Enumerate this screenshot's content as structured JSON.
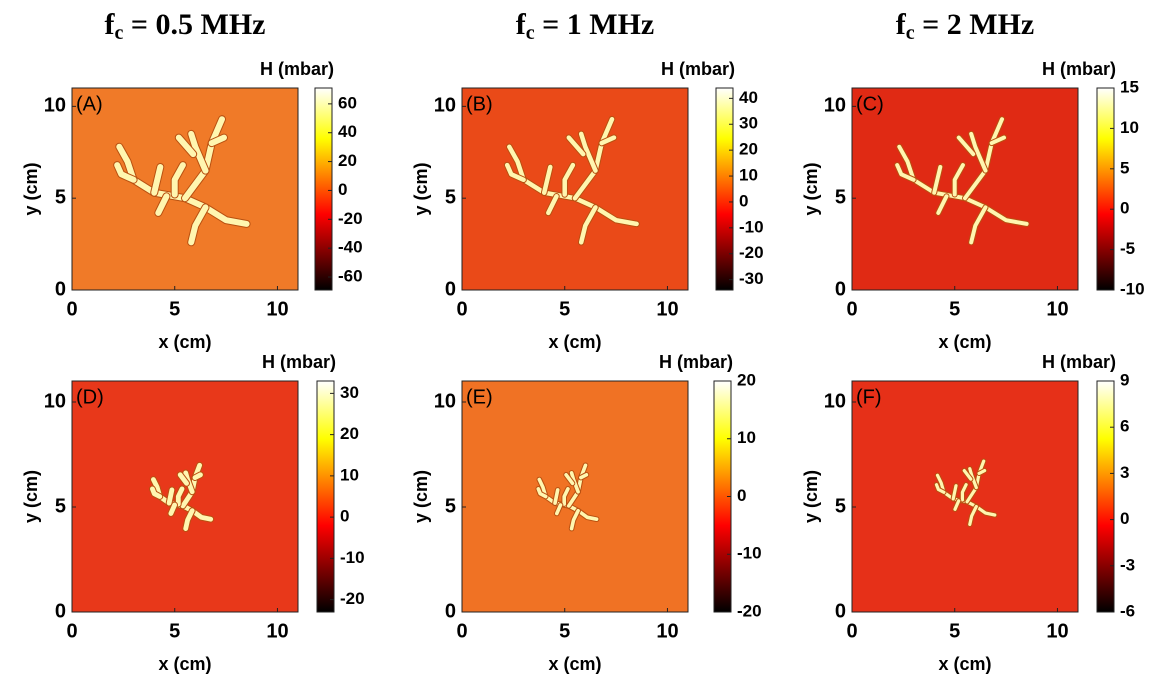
{
  "chart_data": [
    {
      "type": "heatmap",
      "title": [
        "f",
        "c",
        " = 0.5 MHz"
      ],
      "panel_label": "(A)",
      "x_label": "x (cm)",
      "y_label": "y (cm)",
      "xlim": [
        0,
        11
      ],
      "ylim": [
        0,
        11
      ],
      "xticks": [
        0,
        5,
        10
      ],
      "yticks": [
        0,
        5,
        10
      ],
      "field_color": "#f07a28",
      "colormap": "hot",
      "colorbar": {
        "label": "H (mbar)",
        "lim": [
          -69,
          71
        ],
        "ticks": [
          60,
          40,
          20,
          0,
          -20,
          -40,
          -60
        ]
      }
    },
    {
      "type": "heatmap",
      "title": [
        "f",
        "c",
        " = 1 MHz"
      ],
      "panel_label": "(B)",
      "x_label": "x (cm)",
      "y_label": "y (cm)",
      "xlim": [
        0,
        11
      ],
      "ylim": [
        0,
        11
      ],
      "xticks": [
        0,
        5,
        10
      ],
      "yticks": [
        0,
        5,
        10
      ],
      "field_color": "#ea4a18",
      "colormap": "hot",
      "colorbar": {
        "label": "H (mbar)",
        "lim": [
          -34,
          44
        ],
        "ticks": [
          40,
          30,
          20,
          10,
          0,
          -10,
          -20,
          -30
        ]
      }
    },
    {
      "type": "heatmap",
      "title": [
        "f",
        "c",
        " = 2 MHz"
      ],
      "panel_label": "(C)",
      "x_label": "x (cm)",
      "y_label": "y (cm)",
      "xlim": [
        0,
        11
      ],
      "ylim": [
        0,
        11
      ],
      "xticks": [
        0,
        5,
        10
      ],
      "yticks": [
        0,
        5,
        10
      ],
      "field_color": "#e02a14",
      "colormap": "hot",
      "colorbar": {
        "label": "H (mbar)",
        "lim": [
          -10,
          15
        ],
        "ticks": [
          15,
          10,
          5,
          0,
          -5,
          -10
        ]
      }
    },
    {
      "type": "heatmap",
      "panel_label": "(D)",
      "x_label": "x (cm)",
      "y_label": "y (cm)",
      "xlim": [
        0,
        11
      ],
      "ylim": [
        0,
        11
      ],
      "xticks": [
        0,
        5,
        10
      ],
      "yticks": [
        0,
        5,
        10
      ],
      "field_color": "#e8381a",
      "colormap": "hot",
      "colorbar": {
        "label": "H (mbar)",
        "lim": [
          -23,
          33
        ],
        "ticks": [
          30,
          20,
          10,
          0,
          -10,
          -20
        ]
      }
    },
    {
      "type": "heatmap",
      "panel_label": "(E)",
      "x_label": "x (cm)",
      "y_label": "y (cm)",
      "xlim": [
        0,
        11
      ],
      "ylim": [
        0,
        11
      ],
      "xticks": [
        0,
        5,
        10
      ],
      "yticks": [
        0,
        5,
        10
      ],
      "field_color": "#f07224",
      "colormap": "hot",
      "colorbar": {
        "label": "H (mbar)",
        "lim": [
          -20,
          20
        ],
        "ticks": [
          20,
          10,
          0,
          -10,
          -20
        ]
      }
    },
    {
      "type": "heatmap",
      "panel_label": "(F)",
      "x_label": "x (cm)",
      "y_label": "y (cm)",
      "xlim": [
        0,
        11
      ],
      "ylim": [
        0,
        11
      ],
      "xticks": [
        0,
        5,
        10
      ],
      "yticks": [
        0,
        5,
        10
      ],
      "field_color": "#e63018",
      "colormap": "hot",
      "colorbar": {
        "label": "H (mbar)",
        "lim": [
          -6,
          9
        ],
        "ticks": [
          9,
          6,
          3,
          0,
          -3,
          -6
        ]
      }
    }
  ]
}
